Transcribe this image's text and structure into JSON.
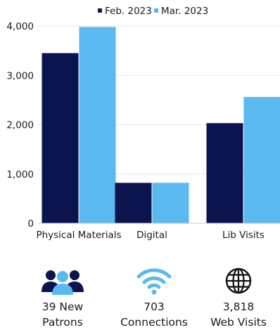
{
  "chart_data": {
    "type": "bar",
    "categories": [
      "Physical Materials",
      "Digital",
      "Lib Visits"
    ],
    "series": [
      {
        "name": "Feb. 2023",
        "color": "#0c1450",
        "values": [
          3450,
          820,
          2030
        ]
      },
      {
        "name": "Mar. 2023",
        "color": "#5ab9ef",
        "values": [
          3980,
          820,
          2560
        ]
      }
    ],
    "y_ticks": [
      "4,000",
      "3,000",
      "2,000",
      "1,000",
      "0"
    ],
    "ylim": [
      0,
      4000
    ],
    "grid": true,
    "legend_position": "top-right",
    "title": "",
    "xlabel": "",
    "ylabel": ""
  },
  "stats": [
    {
      "icon": "people-icon",
      "line1": "39 New",
      "line2": "Patrons",
      "color": "#0c1450"
    },
    {
      "icon": "wifi-icon",
      "line1": "703",
      "line2": "Connections",
      "color": "#5ab9ef"
    },
    {
      "icon": "globe-icon",
      "line1": "3,818",
      "line2": "Web Visits",
      "color": "#111111"
    }
  ]
}
